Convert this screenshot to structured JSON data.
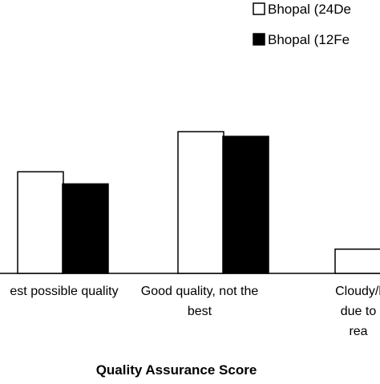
{
  "chart_data": {
    "type": "bar",
    "xlabel": "Quality Assurance Score",
    "ylabel": "",
    "categories": [
      [
        "est possible quality"
      ],
      [
        "Good quality, not the",
        "best"
      ],
      [
        "Cloudy/l",
        "due to",
        "rea"
      ]
    ],
    "series": [
      {
        "name": "Bhopal (24De",
        "color": "#ffffff",
        "values": [
          109,
          152,
          26
        ]
      },
      {
        "name": "Bhopal (12Fe",
        "color": "#000000",
        "values": [
          96,
          147,
          0
        ]
      }
    ],
    "ylim": [
      0,
      160
    ],
    "grid": false,
    "legend": "top-right"
  }
}
